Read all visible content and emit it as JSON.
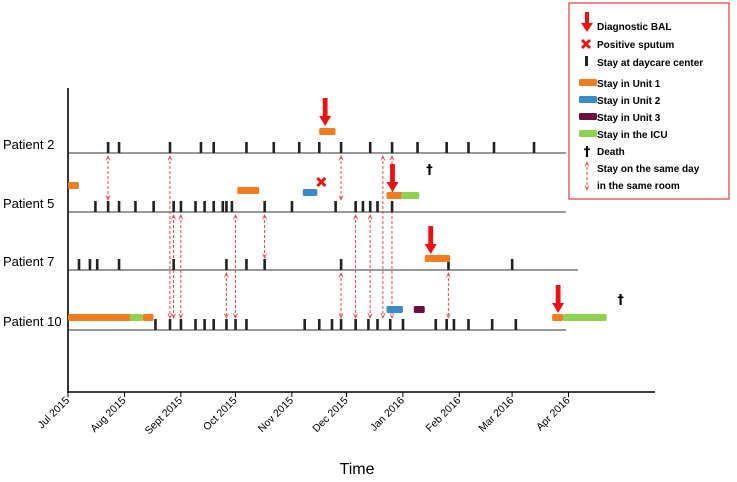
{
  "chart_data": {
    "type": "timeline",
    "xlabel": "Time",
    "colors": {
      "bal": "#ee1111",
      "sputum": "#ee1111",
      "daycare": "#222222",
      "unit1": "#f07d22",
      "unit2": "#3b8bc4",
      "unit3": "#6b1140",
      "icu": "#8ed24f",
      "contact": "#e04848",
      "legend_border": "#e23b3b"
    },
    "x_ticks": [
      {
        "label": "Jul 2015",
        "day": 0
      },
      {
        "label": "Aug 2015",
        "day": 31
      },
      {
        "label": "Sept 2015",
        "day": 62
      },
      {
        "label": "Oct 2015",
        "day": 92
      },
      {
        "label": "Nov 2015",
        "day": 123
      },
      {
        "label": "Dec 2015",
        "day": 153
      },
      {
        "label": "Jan 2016",
        "day": 184
      },
      {
        "label": "Feb 2016",
        "day": 215
      },
      {
        "label": "Mar 2016",
        "day": 244
      },
      {
        "label": "Apr 2016",
        "day": 275
      }
    ],
    "patients": [
      {
        "name": "Patient 2",
        "daycare": [
          22,
          28,
          56,
          73,
          80,
          98,
          113,
          127,
          138,
          150,
          166,
          178,
          192,
          208,
          220,
          234,
          256
        ],
        "stays": [
          {
            "type": "unit1",
            "start": 138,
            "end": 147
          }
        ],
        "bal": [
          138
        ],
        "sputum": [],
        "death": null
      },
      {
        "name": "Patient 5",
        "daycare": [
          15,
          22,
          28,
          37,
          47,
          58,
          62,
          70,
          75,
          80,
          85,
          87,
          90,
          108,
          123,
          147,
          158,
          162,
          166,
          170,
          178
        ],
        "stays": [
          {
            "type": "unit1",
            "start": 0,
            "end": 6
          },
          {
            "type": "unit1",
            "start": 93,
            "end": 105
          },
          {
            "type": "unit2",
            "start": 129,
            "end": 137
          },
          {
            "type": "unit1",
            "start": 175,
            "end": 184
          },
          {
            "type": "icu",
            "start": 183,
            "end": 193
          }
        ],
        "bal": [
          175
        ],
        "sputum": [
          137
        ],
        "death": 197
      },
      {
        "name": "Patient 7",
        "daycare": [
          6,
          12,
          16,
          28,
          58,
          87,
          98,
          108,
          150,
          209,
          244
        ],
        "stays": [
          {
            "type": "unit1",
            "start": 196,
            "end": 210
          }
        ],
        "bal": [
          196
        ],
        "sputum": [],
        "death": null
      },
      {
        "name": "Patient 10",
        "daycare": [
          48,
          56,
          62,
          70,
          75,
          80,
          87,
          92,
          98,
          130,
          138,
          145,
          150,
          158,
          165,
          170,
          177,
          184,
          202,
          208,
          212,
          220,
          233,
          246
        ],
        "stays": [
          {
            "type": "unit1",
            "start": 0,
            "end": 35
          },
          {
            "type": "icu",
            "start": 34,
            "end": 41
          },
          {
            "type": "unit1",
            "start": 41,
            "end": 47
          },
          {
            "type": "unit2",
            "start": 175,
            "end": 184
          },
          {
            "type": "unit3",
            "start": 190,
            "end": 196
          },
          {
            "type": "unit1",
            "start": 266,
            "end": 272
          },
          {
            "type": "icu",
            "start": 272,
            "end": 296
          }
        ],
        "bal": [
          266
        ],
        "sputum": [],
        "death": 302
      }
    ],
    "contacts": [
      {
        "day": 22,
        "from": 0,
        "to": 1
      },
      {
        "day": 56,
        "from": 0,
        "to": 3
      },
      {
        "day": 58,
        "from": 1,
        "to": 3
      },
      {
        "day": 62,
        "from": 1,
        "to": 3
      },
      {
        "day": 87,
        "from": 2,
        "to": 3
      },
      {
        "day": 92,
        "from": 1,
        "to": 3
      },
      {
        "day": 108,
        "from": 1,
        "to": 2
      },
      {
        "day": 150,
        "from": 0,
        "to": 1
      },
      {
        "day": 150,
        "from": 2,
        "to": 3
      },
      {
        "day": 158,
        "from": 1,
        "to": 3
      },
      {
        "day": 166,
        "from": 1,
        "to": 3
      },
      {
        "day": 173,
        "from": 0,
        "to": 3
      },
      {
        "day": 178,
        "from": 0,
        "to": 3
      },
      {
        "day": 209,
        "from": 2,
        "to": 3
      }
    ],
    "legend": [
      {
        "key": "bal",
        "label": "Diagnostic BAL"
      },
      {
        "key": "sputum",
        "label": "Positive sputum"
      },
      {
        "key": "daycare",
        "label": "Stay at daycare center"
      },
      {
        "key": "unit1",
        "label": "Stay in Unit 1"
      },
      {
        "key": "unit2",
        "label": "Stay in Unit 2"
      },
      {
        "key": "unit3",
        "label": "Stay in Unit 3"
      },
      {
        "key": "icu",
        "label": "Stay in the ICU"
      },
      {
        "key": "death",
        "label": "Death"
      },
      {
        "key": "contact",
        "label": "Stay on the same day",
        "label2": "in the same room"
      }
    ],
    "death_symbol": "†",
    "sputum_symbol": "✖"
  }
}
